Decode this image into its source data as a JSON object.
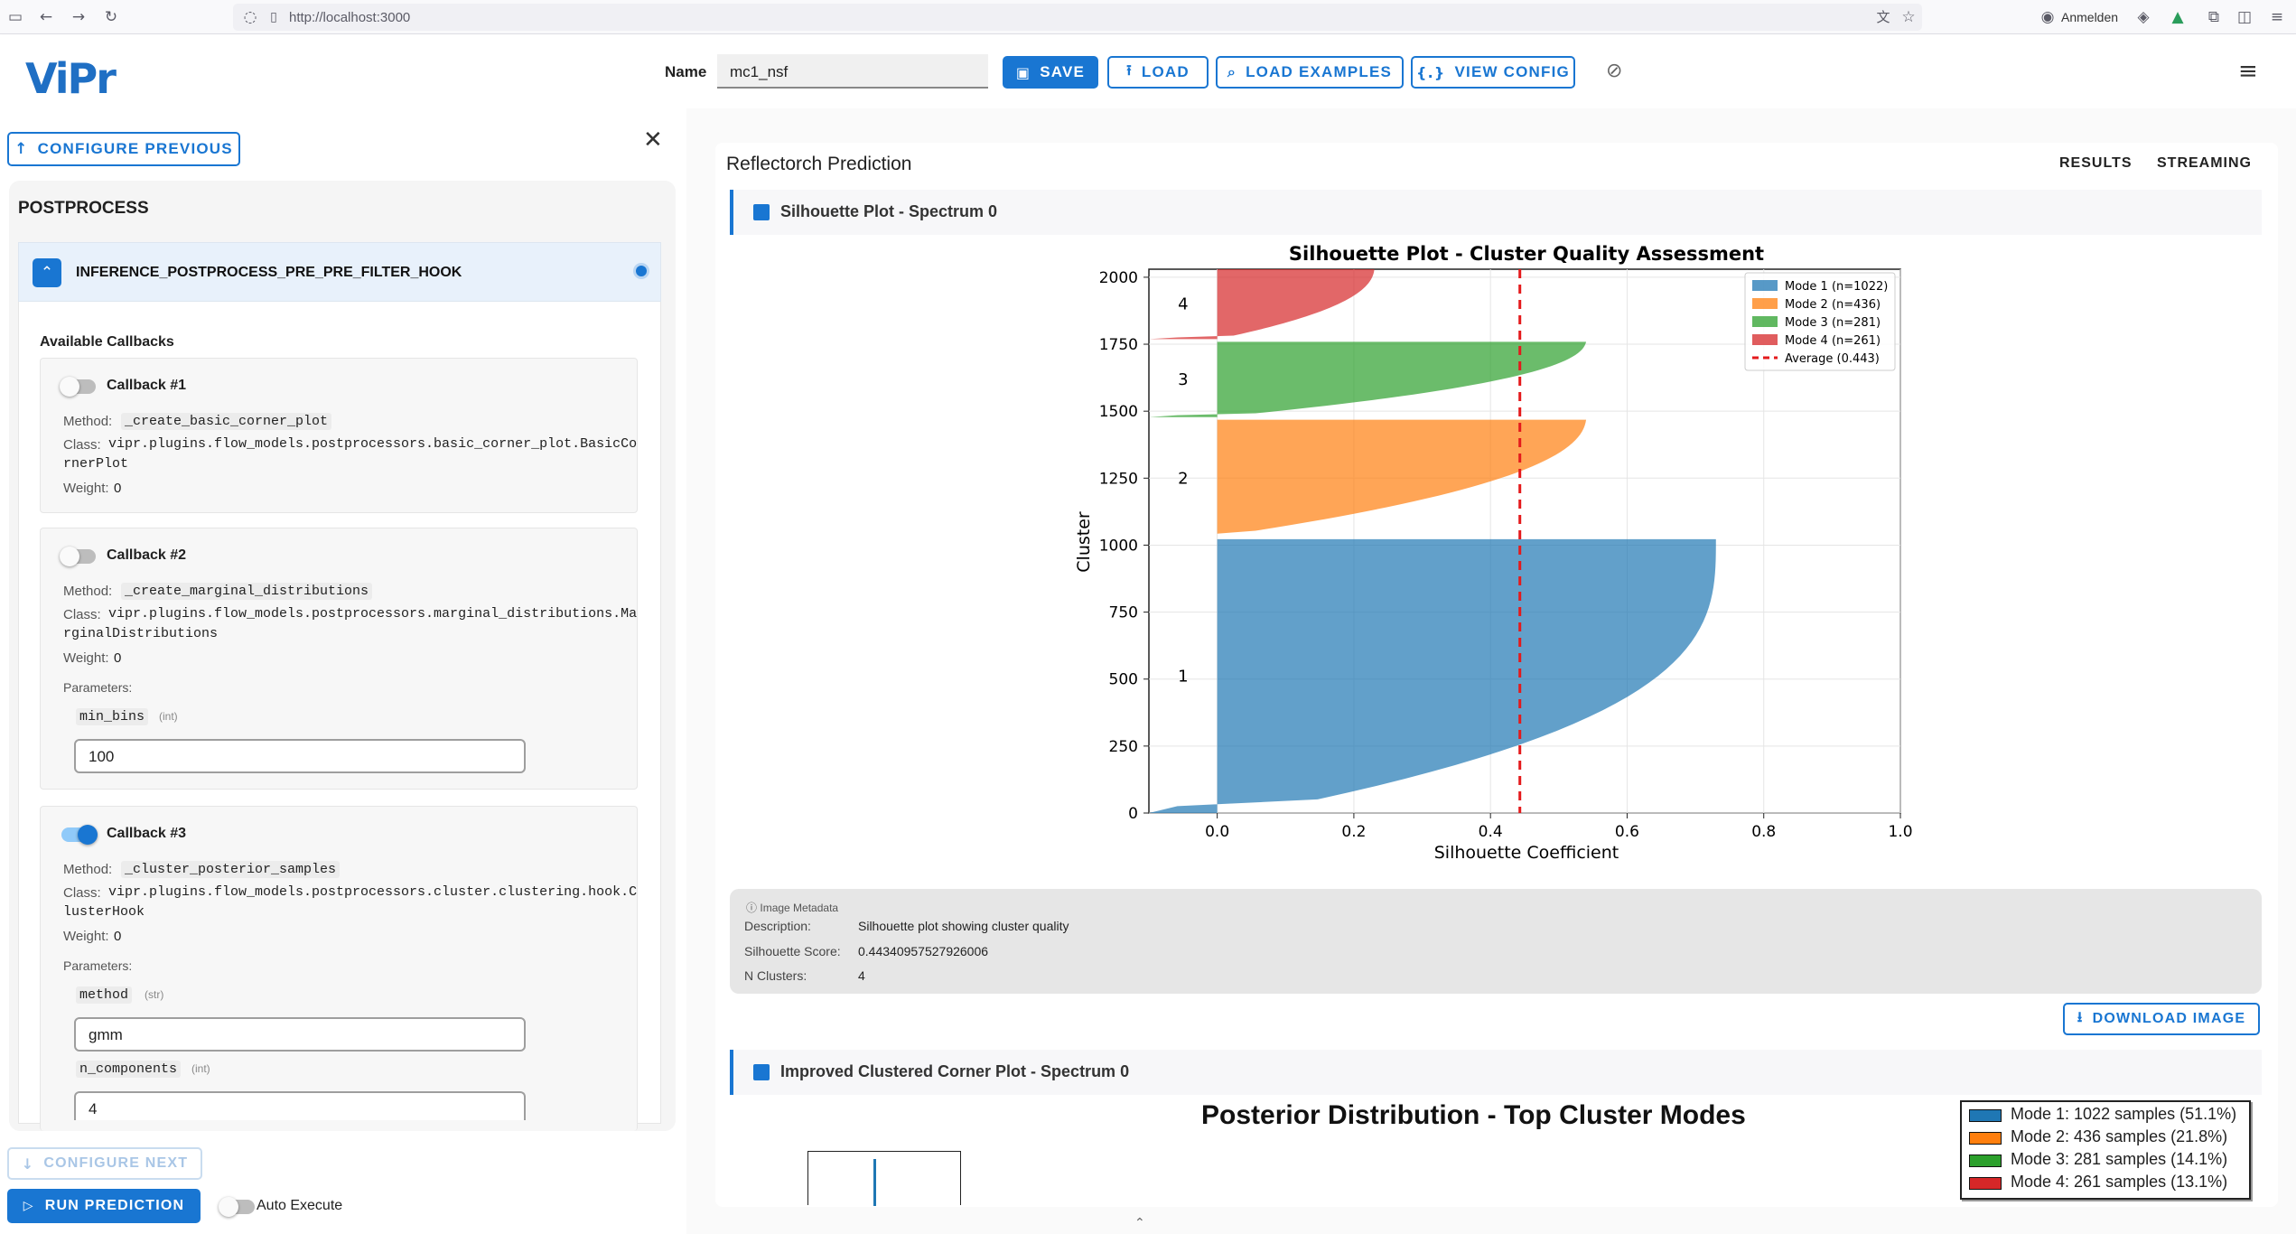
{
  "browser": {
    "url": "http://localhost:3000",
    "signin": "Anmelden"
  },
  "header": {
    "name_label": "Name",
    "name_value": "mc1_nsf",
    "save": "SAVE",
    "load": "LOAD",
    "load_examples": "LOAD EXAMPLES",
    "view_config": "VIEW CONFIG"
  },
  "left": {
    "configure_previous": "CONFIGURE PREVIOUS",
    "section": "POSTPROCESS",
    "hook": "INFERENCE_POSTPROCESS_PRE_PRE_FILTER_HOOK",
    "available": "Available Callbacks",
    "method_label": "Method:",
    "class_label": "Class:",
    "weight_label": "Weight:",
    "params_label": "Parameters:",
    "callbacks": [
      {
        "title": "Callback #1",
        "enabled": false,
        "method": "_create_basic_corner_plot",
        "class1": "vipr.plugins.flow_models.postprocessors.basic_corner_plot.BasicCo",
        "class2": "rnerPlot",
        "weight": "0"
      },
      {
        "title": "Callback #2",
        "enabled": false,
        "method": "_create_marginal_distributions",
        "class1": "vipr.plugins.flow_models.postprocessors.marginal_distributions.Ma",
        "class2": "rginalDistributions",
        "weight": "0",
        "p1_name": "min_bins",
        "p1_type": "(int)",
        "p1_value": "100"
      },
      {
        "title": "Callback #3",
        "enabled": true,
        "method": "_cluster_posterior_samples",
        "class1": "vipr.plugins.flow_models.postprocessors.cluster.clustering.hook.C",
        "class2": "lusterHook",
        "weight": "0",
        "p1_name": "method",
        "p1_type": "(str)",
        "p1_value": "gmm",
        "p2_name": "n_components",
        "p2_type": "(int)",
        "p2_value": "4"
      }
    ],
    "configure_next": "CONFIGURE NEXT",
    "run": "RUN PREDICTION",
    "auto_execute": "Auto Execute"
  },
  "right": {
    "title": "Reflectorch Prediction",
    "tab_results": "RESULTS",
    "tab_streaming": "STREAMING",
    "section1": "Silhouette Plot - Spectrum 0",
    "section2": "Improved Clustered Corner Plot - Spectrum 0",
    "metadata": {
      "header": "Image Metadata",
      "desc_label": "Description:",
      "desc": "Silhouette plot showing cluster quality",
      "score_label": "Silhouette Score:",
      "score": "0.44340957527926006",
      "n_label": "N Clusters:",
      "n": "4"
    },
    "download": "DOWNLOAD IMAGE",
    "corner_title": "Posterior Distribution - Top Cluster Modes",
    "corner_legend": [
      "Mode 1: 1022 samples (51.1%)",
      "Mode 2: 436 samples (21.8%)",
      "Mode 3: 281 samples (14.1%)",
      "Mode 4: 261 samples (13.1%)"
    ]
  },
  "colors": {
    "accent": "#1976d2",
    "mode1": "#1f77b4",
    "mode2": "#ff7f0e",
    "mode3": "#2ca02c",
    "mode4": "#d62728"
  },
  "chart_data": {
    "type": "area",
    "title": "Silhouette Plot - Cluster Quality Assessment",
    "xlabel": "Silhouette Coefficient",
    "ylabel": "Cluster",
    "xlim": [
      -0.1,
      1.0
    ],
    "ylim": [
      0,
      2030
    ],
    "xticks": [
      "0.0",
      "0.2",
      "0.4",
      "0.6",
      "0.8",
      "1.0"
    ],
    "yticks": [
      "0",
      "250",
      "500",
      "750",
      "1000",
      "1250",
      "1500",
      "1750",
      "2000"
    ],
    "grid": true,
    "legend_position": "top-right",
    "average": 0.443,
    "average_label": "Average (0.443)",
    "series": [
      {
        "name": "Mode 1 (n=1022)",
        "label": "1",
        "start": 0,
        "n": 1022,
        "max": 0.73,
        "min": -0.1,
        "color": "#1f77b4"
      },
      {
        "name": "Mode 2 (n=436)",
        "label": "2",
        "start": 1032,
        "n": 436,
        "max": 0.54,
        "min": 0.0,
        "color": "#ff7f0e"
      },
      {
        "name": "Mode 3 (n=281)",
        "label": "3",
        "start": 1478,
        "n": 281,
        "max": 0.54,
        "min": -0.1,
        "color": "#2ca02c"
      },
      {
        "name": "Mode 4 (n=261)",
        "label": "4",
        "start": 1769,
        "n": 261,
        "max": 0.23,
        "min": -0.1,
        "color": "#d62728"
      }
    ]
  }
}
